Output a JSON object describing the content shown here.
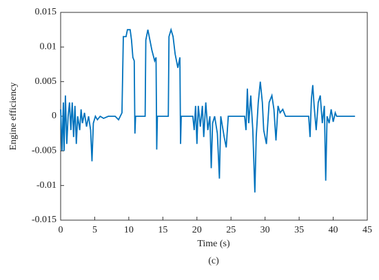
{
  "chart_data": {
    "type": "line",
    "x_label": "Time (s)",
    "y_label": "Engine efficiency",
    "caption": "(c)",
    "xlim": [
      0,
      45
    ],
    "xticks": [
      0,
      5,
      10,
      15,
      20,
      25,
      30,
      35,
      40,
      45
    ],
    "ylim": [
      -0.015,
      0.015
    ],
    "yticks": [
      0.015,
      0.01,
      0.005,
      0,
      -0.005,
      -0.01,
      -0.015
    ],
    "grid": false,
    "series": [
      {
        "color": "#0072bd",
        "x": [
          0,
          0.2,
          0.4,
          0.5,
          0.7,
          0.9,
          1.1,
          1.3,
          1.5,
          1.7,
          1.9,
          2.1,
          2.3,
          2.5,
          2.8,
          3.0,
          3.2,
          3.5,
          3.8,
          4.1,
          4.4,
          4.6,
          4.8,
          5.1,
          5.4,
          5.8,
          6.3,
          7.0,
          8.0,
          8.5,
          9.0,
          9.2,
          9.6,
          9.8,
          10.2,
          10.4,
          10.6,
          10.8,
          10.9,
          11.0,
          12.4,
          12.5,
          12.8,
          13.1,
          13.4,
          13.8,
          14.0,
          14.1,
          14.2,
          15.8,
          15.9,
          16.2,
          16.5,
          16.8,
          17.2,
          17.5,
          17.6,
          17.7,
          19.4,
          19.6,
          19.8,
          20.0,
          20.2,
          20.5,
          20.8,
          21.0,
          21.3,
          21.6,
          21.9,
          22.1,
          22.3,
          22.6,
          23.0,
          23.3,
          23.5,
          24.0,
          24.3,
          24.6,
          27.0,
          27.2,
          27.4,
          27.6,
          27.9,
          28.2,
          28.5,
          28.7,
          29.0,
          29.3,
          29.6,
          29.8,
          30.2,
          30.6,
          31.0,
          31.3,
          31.6,
          31.9,
          32.2,
          32.6,
          33.0,
          36.0,
          36.4,
          36.6,
          36.8,
          37.0,
          37.2,
          37.5,
          37.8,
          38.1,
          38.4,
          38.7,
          38.9,
          39.1,
          39.4,
          39.7,
          40.0,
          40.3,
          40.5,
          43.2
        ],
        "values": [
          0.001,
          -0.005,
          0.002,
          -0.005,
          0.003,
          -0.004,
          0,
          0.002,
          -0.002,
          0.002,
          -0.003,
          0.0015,
          -0.004,
          0,
          -0.002,
          0.001,
          -0.001,
          0.0005,
          -0.0015,
          0,
          -0.002,
          -0.0065,
          -0.001,
          0,
          -0.0005,
          0,
          -0.0003,
          0,
          0,
          -0.0005,
          0.0005,
          0.0115,
          0.0115,
          0.0125,
          0.0125,
          0.011,
          0.0085,
          0.008,
          -0.0025,
          0,
          0,
          0.011,
          0.0125,
          0.011,
          0.0095,
          0.008,
          0.0085,
          -0.0048,
          0,
          0,
          0.0115,
          0.0125,
          0.0115,
          0.009,
          0.007,
          0.0085,
          -0.004,
          0,
          0,
          -0.002,
          0.0015,
          -0.004,
          0.0015,
          -0.0015,
          0.0015,
          -0.003,
          0.002,
          -0.002,
          0,
          -0.0075,
          -0.001,
          0,
          -0.0025,
          -0.009,
          0,
          -0.003,
          -0.0045,
          0,
          0,
          -0.002,
          0.004,
          -0.001,
          0.003,
          -0.002,
          -0.011,
          -0.003,
          0.002,
          0.005,
          0.002,
          -0.002,
          -0.004,
          0.002,
          0.003,
          0.001,
          -0.0035,
          0.0015,
          0.0005,
          0.001,
          0,
          0,
          0,
          -0.003,
          0.0025,
          0.0045,
          0.0015,
          -0.002,
          0.002,
          0.003,
          -0.001,
          0.0015,
          -0.0093,
          0,
          -0.001,
          0.001,
          -0.0008,
          0.0005,
          0,
          0
        ]
      }
    ]
  }
}
